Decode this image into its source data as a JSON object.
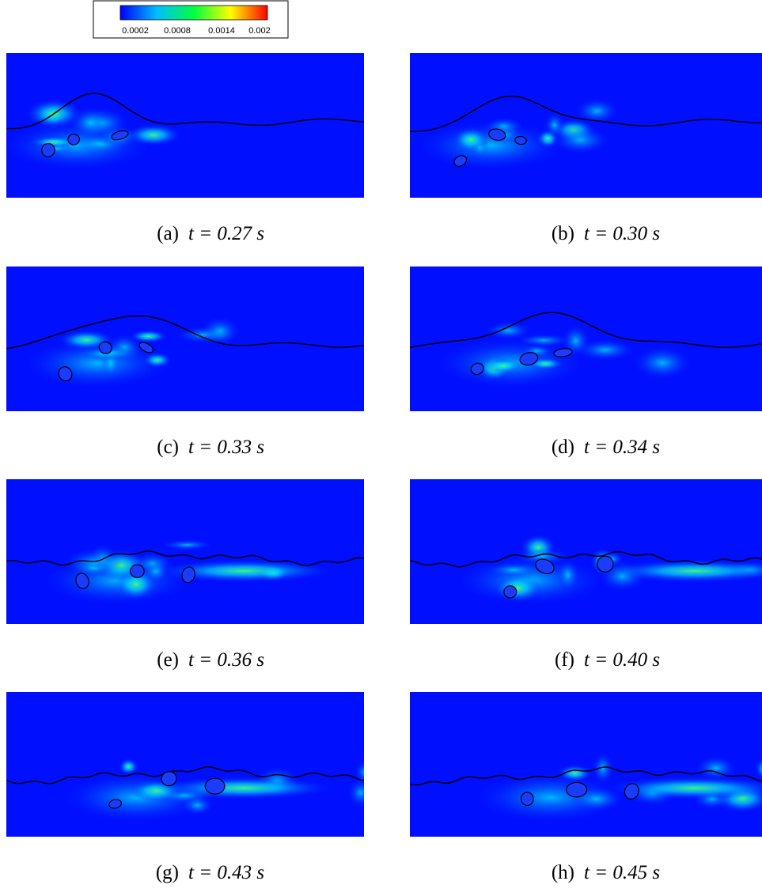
{
  "colorbar": {
    "labels": [
      "0.0002",
      "0.0008",
      "0.0014",
      "0.002"
    ]
  },
  "panels": [
    {
      "label": "(a)",
      "caption": "t = 0.27 s"
    },
    {
      "label": "(b)",
      "caption": "t = 0.30 s"
    },
    {
      "label": "(c)",
      "caption": "t = 0.33 s"
    },
    {
      "label": "(d)",
      "caption": "t = 0.34 s"
    },
    {
      "label": "(e)",
      "caption": "t = 0.36 s"
    },
    {
      "label": "(f)",
      "caption": "t = 0.40 s"
    },
    {
      "label": "(g)",
      "caption": "t = 0.43 s"
    },
    {
      "label": "(h)",
      "caption": "t = 0.45 s"
    }
  ]
}
